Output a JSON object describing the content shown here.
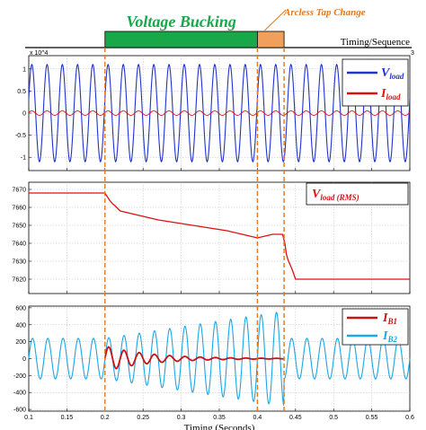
{
  "colors": {
    "voltage_bucking_bar": "#18a84a",
    "arcless_bar": "#f0a05a",
    "marker_line": "#e07820",
    "v_load": "#2233cc",
    "i_load": "#dd1111",
    "v_rms": "#dd1111",
    "i_b1": "#cc1111",
    "i_b2": "#1aa7e6"
  },
  "header": {
    "voltage_bucking_label": "Voltage Bucking",
    "arcless_label": "Arcless Tap Change",
    "timing_label": "Timing/Sequence",
    "voltage_bucking_span": [
      0.2,
      0.4
    ],
    "arcless_span": [
      0.4,
      0.435
    ]
  },
  "xlabel": "Timing (Seconds)",
  "chart_data": [
    {
      "type": "line",
      "panel": "top",
      "y_exponent_label": "x 10^4",
      "corner_label": "3",
      "xlim": [
        0.1,
        0.6
      ],
      "ylim": [
        -1.3,
        1.3
      ],
      "x_ticks": [
        0.1,
        0.15,
        0.2,
        0.25,
        0.3,
        0.35,
        0.4,
        0.45,
        0.5,
        0.55,
        0.6
      ],
      "y_ticks": [
        -1,
        -0.5,
        0,
        0.5,
        1
      ],
      "grid": true,
      "legend": "top-right",
      "frequency_hz": 50,
      "series": [
        {
          "name": "V_load",
          "label_main": "V",
          "label_sub": "load",
          "amplitude": 1.1,
          "color": "#2233cc"
        },
        {
          "name": "I_load",
          "label_main": "I",
          "label_sub": "load",
          "amplitude": 0.05,
          "color": "#dd1111"
        }
      ]
    },
    {
      "type": "line",
      "panel": "middle",
      "xlim": [
        0.1,
        0.6
      ],
      "ylim": [
        7612,
        7674
      ],
      "x_ticks": [
        0.1,
        0.15,
        0.2,
        0.25,
        0.3,
        0.35,
        0.4,
        0.45,
        0.5,
        0.55,
        0.6
      ],
      "y_ticks": [
        7620,
        7630,
        7640,
        7650,
        7660,
        7670
      ],
      "grid": true,
      "legend": "top-right",
      "series": [
        {
          "name": "V_load (RMS)",
          "label_main": "V",
          "label_sub": "load (RMS)",
          "color": "#dd1111",
          "x": [
            0.1,
            0.2,
            0.203,
            0.206,
            0.21,
            0.213,
            0.22,
            0.24,
            0.27,
            0.3,
            0.33,
            0.36,
            0.38,
            0.4,
            0.41,
            0.42,
            0.433,
            0.436,
            0.438,
            0.44,
            0.444,
            0.446,
            0.45,
            0.6
          ],
          "y": [
            7668,
            7668,
            7666,
            7664,
            7662,
            7661,
            7658,
            7656,
            7653,
            7651,
            7649,
            7647,
            7645,
            7643,
            7644,
            7645,
            7645,
            7640,
            7634,
            7631,
            7627,
            7625,
            7620,
            7620
          ]
        }
      ]
    },
    {
      "type": "line",
      "panel": "bottom",
      "xlim": [
        0.1,
        0.6
      ],
      "ylim": [
        -620,
        620
      ],
      "x_ticks": [
        0.1,
        0.15,
        0.2,
        0.25,
        0.3,
        0.35,
        0.4,
        0.45,
        0.5,
        0.55,
        0.6
      ],
      "y_ticks": [
        -600,
        -400,
        -200,
        0,
        200,
        400,
        600
      ],
      "grid": true,
      "legend": "top-right",
      "frequency_hz": 50,
      "series": [
        {
          "name": "I_B1",
          "label_main": "I",
          "label_sub": "B1",
          "color": "#cc1111",
          "initial_amplitude": 150,
          "active_span": [
            0.2,
            0.435
          ]
        },
        {
          "name": "I_B2",
          "label_main": "I",
          "label_sub": "B2",
          "color": "#1aa7e6",
          "base_amplitude": 240,
          "peak_amplitude": 560,
          "ramp_span": [
            0.2,
            0.435
          ]
        }
      ]
    }
  ],
  "x_tick_labels": [
    "0.1",
    "0.15",
    "0.2",
    "0.25",
    "0.3",
    "0.35",
    "0.4",
    "0.45",
    "0.5",
    "0.55",
    "0.6"
  ]
}
